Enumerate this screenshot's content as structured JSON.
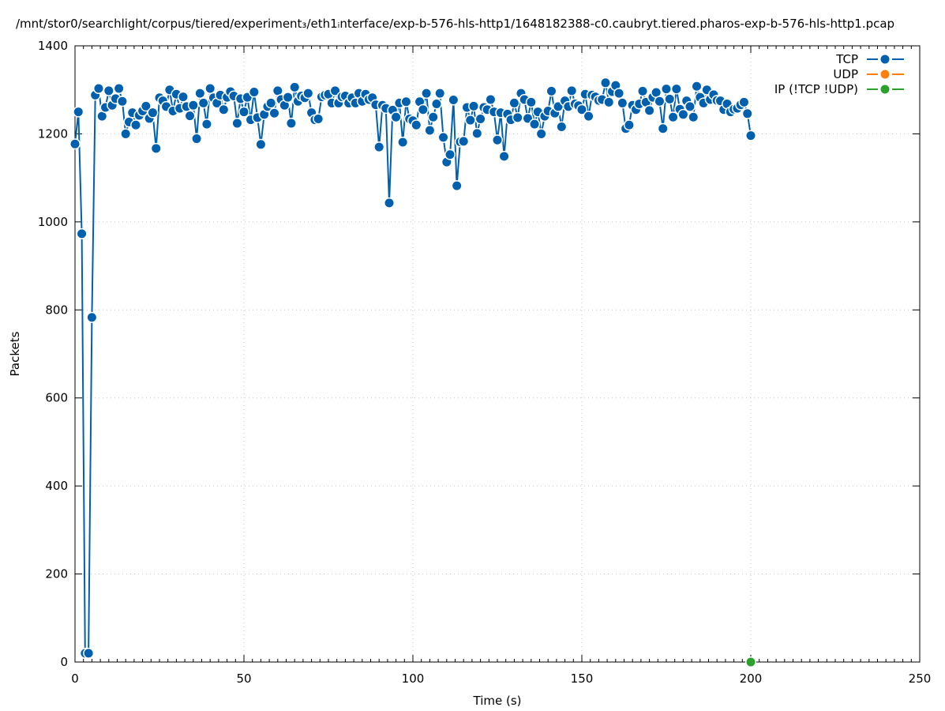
{
  "chart_data": {
    "type": "line",
    "title": "/mnt/stor0/searchlight/corpus/tiered/experiment₃/eth1ᵢnterface/exp-b-576-hls-http1/1648182388-c0.caubryt.tiered.pharos-exp-b-576-hls-http1.pcap",
    "xlabel": "Time (s)",
    "ylabel": "Packets",
    "xlim": [
      0,
      250
    ],
    "ylim": [
      0,
      1400
    ],
    "x_ticks": [
      "0",
      "50",
      "100",
      "150",
      "200",
      "250"
    ],
    "y_ticks": [
      "0",
      "200",
      "400",
      "600",
      "800",
      "1000",
      "1200",
      "1400"
    ],
    "grid": true,
    "legend_position": "top-right",
    "series": [
      {
        "name": "TCP",
        "color": "#0060ad",
        "points": [
          [
            0,
            1177
          ],
          [
            1,
            1250
          ],
          [
            2,
            973
          ],
          [
            3,
            20
          ],
          [
            4,
            20
          ],
          [
            5,
            783
          ],
          [
            6,
            1288
          ],
          [
            7,
            1303
          ],
          [
            8,
            1240
          ],
          [
            9,
            1260
          ],
          [
            10,
            1298
          ],
          [
            11,
            1265
          ],
          [
            12,
            1280
          ],
          [
            13,
            1303
          ],
          [
            14,
            1274
          ],
          [
            15,
            1200
          ],
          [
            16,
            1227
          ],
          [
            17,
            1248
          ],
          [
            18,
            1220
          ],
          [
            19,
            1242
          ],
          [
            20,
            1252
          ],
          [
            21,
            1263
          ],
          [
            22,
            1235
          ],
          [
            23,
            1248
          ],
          [
            24,
            1167
          ],
          [
            25,
            1282
          ],
          [
            26,
            1275
          ],
          [
            27,
            1262
          ],
          [
            28,
            1300
          ],
          [
            29,
            1252
          ],
          [
            30,
            1290
          ],
          [
            31,
            1258
          ],
          [
            32,
            1284
          ],
          [
            33,
            1262
          ],
          [
            34,
            1241
          ],
          [
            35,
            1265
          ],
          [
            36,
            1189
          ],
          [
            37,
            1292
          ],
          [
            38,
            1270
          ],
          [
            39,
            1222
          ],
          [
            40,
            1303
          ],
          [
            41,
            1282
          ],
          [
            42,
            1270
          ],
          [
            43,
            1288
          ],
          [
            44,
            1255
          ],
          [
            45,
            1283
          ],
          [
            46,
            1296
          ],
          [
            47,
            1286
          ],
          [
            48,
            1224
          ],
          [
            49,
            1280
          ],
          [
            50,
            1250
          ],
          [
            51,
            1283
          ],
          [
            52,
            1232
          ],
          [
            53,
            1295
          ],
          [
            54,
            1237
          ],
          [
            55,
            1176
          ],
          [
            56,
            1244
          ],
          [
            57,
            1262
          ],
          [
            58,
            1270
          ],
          [
            59,
            1247
          ],
          [
            60,
            1298
          ],
          [
            61,
            1278
          ],
          [
            62,
            1265
          ],
          [
            63,
            1283
          ],
          [
            64,
            1224
          ],
          [
            65,
            1306
          ],
          [
            66,
            1274
          ],
          [
            67,
            1286
          ],
          [
            68,
            1282
          ],
          [
            69,
            1292
          ],
          [
            70,
            1248
          ],
          [
            71,
            1232
          ],
          [
            72,
            1234
          ],
          [
            73,
            1284
          ],
          [
            74,
            1288
          ],
          [
            75,
            1290
          ],
          [
            76,
            1270
          ],
          [
            77,
            1298
          ],
          [
            78,
            1270
          ],
          [
            79,
            1284
          ],
          [
            80,
            1286
          ],
          [
            81,
            1270
          ],
          [
            82,
            1282
          ],
          [
            83,
            1270
          ],
          [
            84,
            1292
          ],
          [
            85,
            1274
          ],
          [
            86,
            1290
          ],
          [
            87,
            1278
          ],
          [
            88,
            1282
          ],
          [
            89,
            1266
          ],
          [
            90,
            1170
          ],
          [
            91,
            1265
          ],
          [
            92,
            1258
          ],
          [
            93,
            1043
          ],
          [
            94,
            1254
          ],
          [
            95,
            1238
          ],
          [
            96,
            1270
          ],
          [
            97,
            1181
          ],
          [
            98,
            1273
          ],
          [
            99,
            1234
          ],
          [
            100,
            1230
          ],
          [
            101,
            1220
          ],
          [
            102,
            1273
          ],
          [
            103,
            1255
          ],
          [
            104,
            1292
          ],
          [
            105,
            1208
          ],
          [
            106,
            1238
          ],
          [
            107,
            1268
          ],
          [
            108,
            1292
          ],
          [
            109,
            1192
          ],
          [
            110,
            1136
          ],
          [
            111,
            1153
          ],
          [
            112,
            1277
          ],
          [
            113,
            1082
          ],
          [
            114,
            1182
          ],
          [
            115,
            1183
          ],
          [
            116,
            1260
          ],
          [
            117,
            1231
          ],
          [
            118,
            1263
          ],
          [
            119,
            1201
          ],
          [
            120,
            1234
          ],
          [
            121,
            1260
          ],
          [
            122,
            1255
          ],
          [
            123,
            1278
          ],
          [
            124,
            1250
          ],
          [
            125,
            1186
          ],
          [
            126,
            1248
          ],
          [
            127,
            1149
          ],
          [
            128,
            1245
          ],
          [
            129,
            1232
          ],
          [
            130,
            1270
          ],
          [
            131,
            1237
          ],
          [
            132,
            1292
          ],
          [
            133,
            1278
          ],
          [
            134,
            1235
          ],
          [
            135,
            1272
          ],
          [
            136,
            1222
          ],
          [
            137,
            1250
          ],
          [
            138,
            1200
          ],
          [
            139,
            1240
          ],
          [
            140,
            1252
          ],
          [
            141,
            1297
          ],
          [
            142,
            1247
          ],
          [
            143,
            1262
          ],
          [
            144,
            1216
          ],
          [
            145,
            1275
          ],
          [
            146,
            1262
          ],
          [
            147,
            1298
          ],
          [
            148,
            1268
          ],
          [
            149,
            1264
          ],
          [
            150,
            1255
          ],
          [
            151,
            1290
          ],
          [
            152,
            1240
          ],
          [
            153,
            1288
          ],
          [
            154,
            1284
          ],
          [
            155,
            1276
          ],
          [
            156,
            1278
          ],
          [
            157,
            1316
          ],
          [
            158,
            1272
          ],
          [
            159,
            1296
          ],
          [
            160,
            1310
          ],
          [
            161,
            1292
          ],
          [
            162,
            1270
          ],
          [
            163,
            1212
          ],
          [
            164,
            1220
          ],
          [
            165,
            1265
          ],
          [
            166,
            1255
          ],
          [
            167,
            1268
          ],
          [
            168,
            1297
          ],
          [
            169,
            1272
          ],
          [
            170,
            1253
          ],
          [
            171,
            1283
          ],
          [
            172,
            1294
          ],
          [
            173,
            1274
          ],
          [
            174,
            1212
          ],
          [
            175,
            1302
          ],
          [
            176,
            1279
          ],
          [
            177,
            1238
          ],
          [
            178,
            1302
          ],
          [
            179,
            1256
          ],
          [
            180,
            1244
          ],
          [
            181,
            1275
          ],
          [
            182,
            1262
          ],
          [
            183,
            1238
          ],
          [
            184,
            1308
          ],
          [
            185,
            1283
          ],
          [
            186,
            1270
          ],
          [
            187,
            1300
          ],
          [
            188,
            1278
          ],
          [
            189,
            1289
          ],
          [
            190,
            1276
          ],
          [
            191,
            1275
          ],
          [
            192,
            1255
          ],
          [
            193,
            1268
          ],
          [
            194,
            1250
          ],
          [
            195,
            1256
          ],
          [
            196,
            1258
          ],
          [
            197,
            1266
          ],
          [
            198,
            1272
          ],
          [
            199,
            1246
          ],
          [
            200,
            1196
          ]
        ]
      },
      {
        "name": "UDP",
        "color": "#ff7f0e",
        "points": []
      },
      {
        "name": "IP (!TCP  !UDP)",
        "color": "#2ca02c",
        "points": [
          [
            200,
            0
          ]
        ]
      }
    ]
  }
}
